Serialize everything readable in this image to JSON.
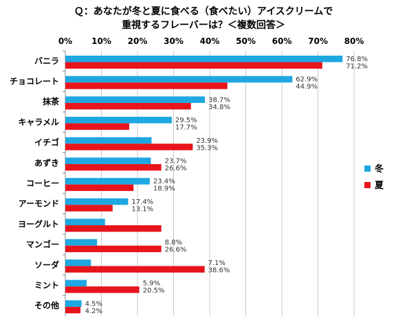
{
  "chart_data": {
    "type": "bar",
    "orientation": "horizontal",
    "title": "Ｑ：あなたが冬と夏に食べる（食べたい）アイスクリームで",
    "subtitle": "重視するフレーバーは？＜複数回答＞",
    "xlim": [
      0,
      80
    ],
    "xticks": [
      "0%",
      "10%",
      "20%",
      "30%",
      "40%",
      "50%",
      "60%",
      "70%",
      "80%"
    ],
    "categories": [
      "バニラ",
      "チョコレート",
      "抹茶",
      "キャラメル",
      "イチゴ",
      "あずき",
      "コーヒー",
      "アーモンド",
      "ヨーグルト",
      "マンゴー",
      "ソーダ",
      "ミント",
      "その他"
    ],
    "series": [
      {
        "name": "冬",
        "color": "#1ea7e0",
        "values": [
          76.8,
          62.9,
          38.7,
          29.5,
          23.9,
          23.7,
          23.4,
          17.4,
          11.0,
          8.8,
          7.1,
          5.9,
          4.5
        ],
        "labels": [
          "76.8%",
          "62.9%",
          "38.7%",
          "29.5%",
          "23.9%",
          "23.7%",
          "23.4%",
          "17.4%",
          null,
          "8.8%",
          "7.1%",
          "5.9%",
          "4.5%"
        ]
      },
      {
        "name": "夏",
        "color": "#e8141c",
        "values": [
          71.2,
          44.9,
          34.8,
          17.7,
          35.3,
          26.6,
          18.9,
          13.1,
          26.6,
          26.6,
          38.6,
          20.5,
          4.2
        ],
        "labels": [
          "71.2%",
          "44.9%",
          "34.8%",
          "17.7%",
          "35.3%",
          "26.6%",
          "18.9%",
          "13.1%",
          null,
          "26.6%",
          "38.6%",
          "20.5%",
          "4.2%"
        ]
      }
    ],
    "grid": true,
    "legend_position": "right"
  }
}
